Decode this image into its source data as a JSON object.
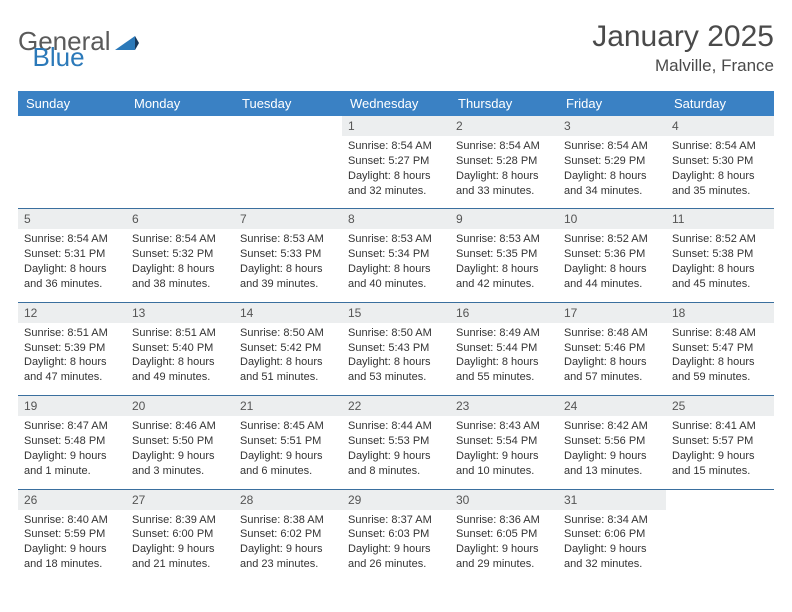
{
  "logo": {
    "text_general": "General",
    "text_blue": "Blue"
  },
  "title": "January 2025",
  "location": "Malville, France",
  "weekday_header_bg": "#3a81c4",
  "weekday_header_color": "#ffffff",
  "daynum_bg": "#eceeef",
  "row_divider_color": "#3a6f9e",
  "weekdays": [
    "Sunday",
    "Monday",
    "Tuesday",
    "Wednesday",
    "Thursday",
    "Friday",
    "Saturday"
  ],
  "weeks": [
    [
      {
        "day": "",
        "sunrise": "",
        "sunset": "",
        "daylight": ""
      },
      {
        "day": "",
        "sunrise": "",
        "sunset": "",
        "daylight": ""
      },
      {
        "day": "",
        "sunrise": "",
        "sunset": "",
        "daylight": ""
      },
      {
        "day": "1",
        "sunrise": "Sunrise: 8:54 AM",
        "sunset": "Sunset: 5:27 PM",
        "daylight": "Daylight: 8 hours and 32 minutes."
      },
      {
        "day": "2",
        "sunrise": "Sunrise: 8:54 AM",
        "sunset": "Sunset: 5:28 PM",
        "daylight": "Daylight: 8 hours and 33 minutes."
      },
      {
        "day": "3",
        "sunrise": "Sunrise: 8:54 AM",
        "sunset": "Sunset: 5:29 PM",
        "daylight": "Daylight: 8 hours and 34 minutes."
      },
      {
        "day": "4",
        "sunrise": "Sunrise: 8:54 AM",
        "sunset": "Sunset: 5:30 PM",
        "daylight": "Daylight: 8 hours and 35 minutes."
      }
    ],
    [
      {
        "day": "5",
        "sunrise": "Sunrise: 8:54 AM",
        "sunset": "Sunset: 5:31 PM",
        "daylight": "Daylight: 8 hours and 36 minutes."
      },
      {
        "day": "6",
        "sunrise": "Sunrise: 8:54 AM",
        "sunset": "Sunset: 5:32 PM",
        "daylight": "Daylight: 8 hours and 38 minutes."
      },
      {
        "day": "7",
        "sunrise": "Sunrise: 8:53 AM",
        "sunset": "Sunset: 5:33 PM",
        "daylight": "Daylight: 8 hours and 39 minutes."
      },
      {
        "day": "8",
        "sunrise": "Sunrise: 8:53 AM",
        "sunset": "Sunset: 5:34 PM",
        "daylight": "Daylight: 8 hours and 40 minutes."
      },
      {
        "day": "9",
        "sunrise": "Sunrise: 8:53 AM",
        "sunset": "Sunset: 5:35 PM",
        "daylight": "Daylight: 8 hours and 42 minutes."
      },
      {
        "day": "10",
        "sunrise": "Sunrise: 8:52 AM",
        "sunset": "Sunset: 5:36 PM",
        "daylight": "Daylight: 8 hours and 44 minutes."
      },
      {
        "day": "11",
        "sunrise": "Sunrise: 8:52 AM",
        "sunset": "Sunset: 5:38 PM",
        "daylight": "Daylight: 8 hours and 45 minutes."
      }
    ],
    [
      {
        "day": "12",
        "sunrise": "Sunrise: 8:51 AM",
        "sunset": "Sunset: 5:39 PM",
        "daylight": "Daylight: 8 hours and 47 minutes."
      },
      {
        "day": "13",
        "sunrise": "Sunrise: 8:51 AM",
        "sunset": "Sunset: 5:40 PM",
        "daylight": "Daylight: 8 hours and 49 minutes."
      },
      {
        "day": "14",
        "sunrise": "Sunrise: 8:50 AM",
        "sunset": "Sunset: 5:42 PM",
        "daylight": "Daylight: 8 hours and 51 minutes."
      },
      {
        "day": "15",
        "sunrise": "Sunrise: 8:50 AM",
        "sunset": "Sunset: 5:43 PM",
        "daylight": "Daylight: 8 hours and 53 minutes."
      },
      {
        "day": "16",
        "sunrise": "Sunrise: 8:49 AM",
        "sunset": "Sunset: 5:44 PM",
        "daylight": "Daylight: 8 hours and 55 minutes."
      },
      {
        "day": "17",
        "sunrise": "Sunrise: 8:48 AM",
        "sunset": "Sunset: 5:46 PM",
        "daylight": "Daylight: 8 hours and 57 minutes."
      },
      {
        "day": "18",
        "sunrise": "Sunrise: 8:48 AM",
        "sunset": "Sunset: 5:47 PM",
        "daylight": "Daylight: 8 hours and 59 minutes."
      }
    ],
    [
      {
        "day": "19",
        "sunrise": "Sunrise: 8:47 AM",
        "sunset": "Sunset: 5:48 PM",
        "daylight": "Daylight: 9 hours and 1 minute."
      },
      {
        "day": "20",
        "sunrise": "Sunrise: 8:46 AM",
        "sunset": "Sunset: 5:50 PM",
        "daylight": "Daylight: 9 hours and 3 minutes."
      },
      {
        "day": "21",
        "sunrise": "Sunrise: 8:45 AM",
        "sunset": "Sunset: 5:51 PM",
        "daylight": "Daylight: 9 hours and 6 minutes."
      },
      {
        "day": "22",
        "sunrise": "Sunrise: 8:44 AM",
        "sunset": "Sunset: 5:53 PM",
        "daylight": "Daylight: 9 hours and 8 minutes."
      },
      {
        "day": "23",
        "sunrise": "Sunrise: 8:43 AM",
        "sunset": "Sunset: 5:54 PM",
        "daylight": "Daylight: 9 hours and 10 minutes."
      },
      {
        "day": "24",
        "sunrise": "Sunrise: 8:42 AM",
        "sunset": "Sunset: 5:56 PM",
        "daylight": "Daylight: 9 hours and 13 minutes."
      },
      {
        "day": "25",
        "sunrise": "Sunrise: 8:41 AM",
        "sunset": "Sunset: 5:57 PM",
        "daylight": "Daylight: 9 hours and 15 minutes."
      }
    ],
    [
      {
        "day": "26",
        "sunrise": "Sunrise: 8:40 AM",
        "sunset": "Sunset: 5:59 PM",
        "daylight": "Daylight: 9 hours and 18 minutes."
      },
      {
        "day": "27",
        "sunrise": "Sunrise: 8:39 AM",
        "sunset": "Sunset: 6:00 PM",
        "daylight": "Daylight: 9 hours and 21 minutes."
      },
      {
        "day": "28",
        "sunrise": "Sunrise: 8:38 AM",
        "sunset": "Sunset: 6:02 PM",
        "daylight": "Daylight: 9 hours and 23 minutes."
      },
      {
        "day": "29",
        "sunrise": "Sunrise: 8:37 AM",
        "sunset": "Sunset: 6:03 PM",
        "daylight": "Daylight: 9 hours and 26 minutes."
      },
      {
        "day": "30",
        "sunrise": "Sunrise: 8:36 AM",
        "sunset": "Sunset: 6:05 PM",
        "daylight": "Daylight: 9 hours and 29 minutes."
      },
      {
        "day": "31",
        "sunrise": "Sunrise: 8:34 AM",
        "sunset": "Sunset: 6:06 PM",
        "daylight": "Daylight: 9 hours and 32 minutes."
      },
      {
        "day": "",
        "sunrise": "",
        "sunset": "",
        "daylight": ""
      }
    ]
  ]
}
